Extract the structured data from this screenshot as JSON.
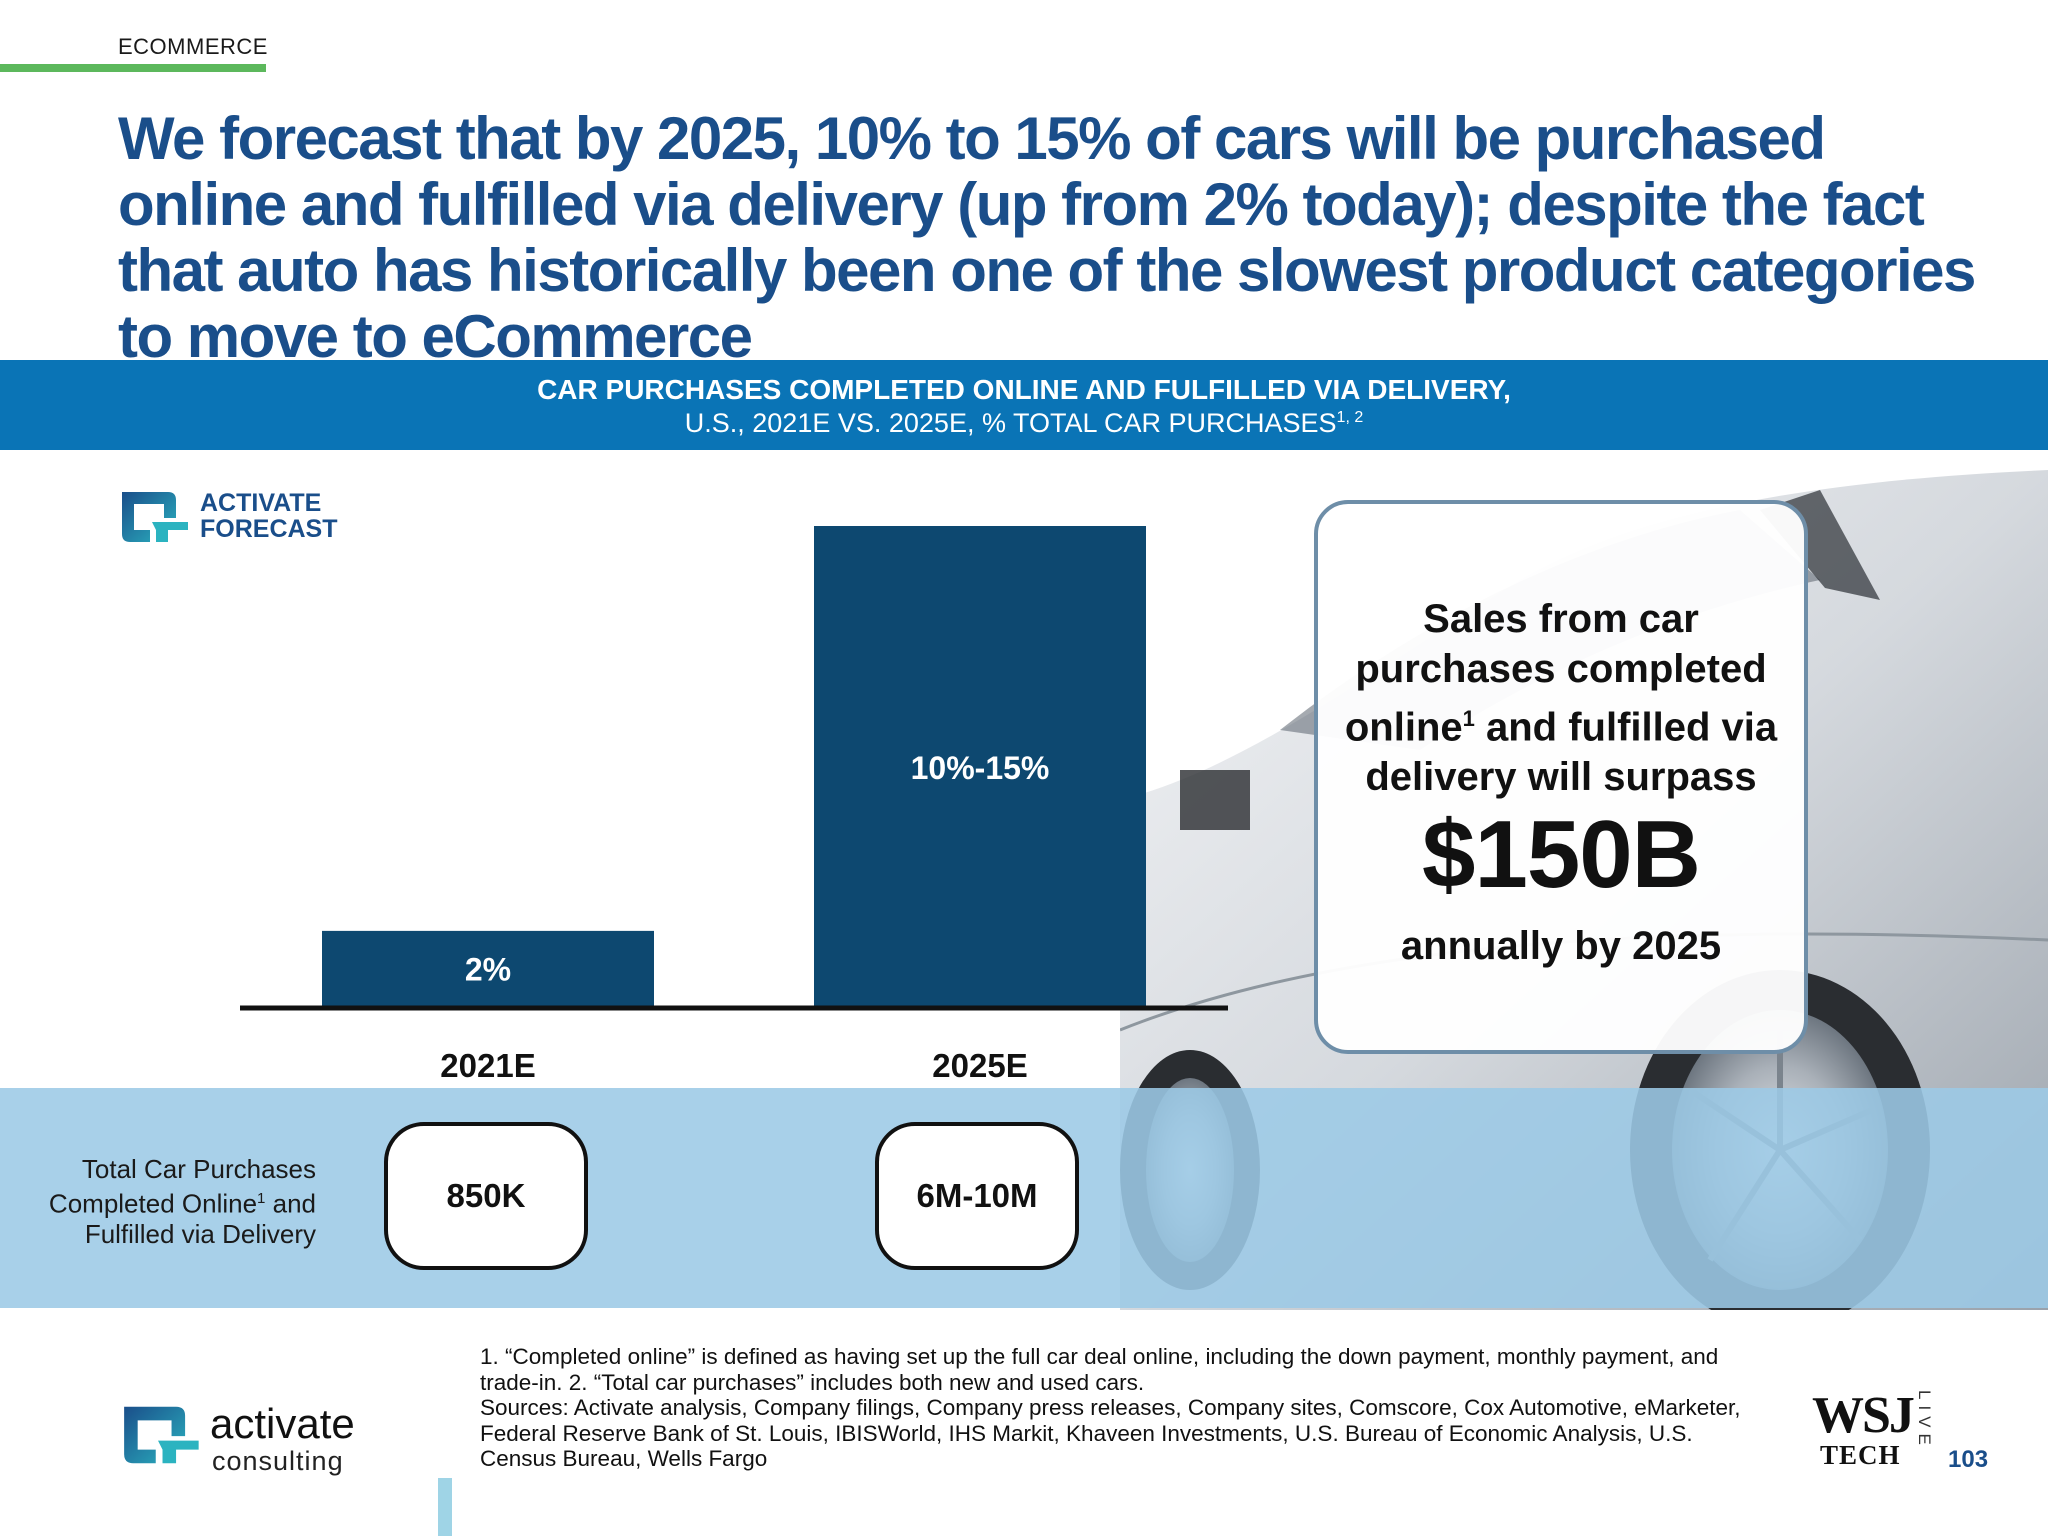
{
  "section_label": "ECOMMERCE",
  "headline": "We forecast that by 2025, 10% to 15% of cars will be purchased online and fulfilled via delivery (up from 2% today); despite the fact that auto has historically been one of the slowest product categories to move to eCommerce",
  "banner": {
    "line1": "CAR PURCHASES COMPLETED ONLINE AND FULFILLED VIA DELIVERY,",
    "line2": "U.S., 2021E VS. 2025E, % TOTAL CAR PURCHASES",
    "line2_sup": "1, 2"
  },
  "forecast_logo": {
    "line1": "ACTIVATE",
    "line2": "FORECAST"
  },
  "chart_data": {
    "type": "bar",
    "categories": [
      "2021E",
      "2025E"
    ],
    "values": [
      2,
      12.5
    ],
    "value_labels": [
      "2%",
      "10%-15%"
    ],
    "range": [
      [
        2,
        2
      ],
      [
        10,
        15
      ]
    ],
    "unit": "% of total car purchases",
    "ylim": [
      0,
      12.5
    ],
    "grid": false,
    "colors": {
      "bar": "#0d4870",
      "axis": "#111111"
    }
  },
  "row_label": {
    "prefix": "Total Car Purchases Completed Online",
    "sup": "1",
    "suffix": " and Fulfilled via Delivery"
  },
  "pills": [
    "850K",
    "6M-10M"
  ],
  "callout": {
    "text_a": "Sales from car purchases completed online",
    "sup": "1",
    "text_b": " and fulfilled via delivery will surpass",
    "big": "$150B",
    "tail": "annually by 2025"
  },
  "footnotes": {
    "line1": "1. “Completed online” is defined as having set up the full car deal online, including the down payment, monthly payment, and trade-in.  2. “Total car purchases” includes both new and used cars.",
    "sources": "Sources: Activate analysis, Company filings, Company press releases, Company sites, Comscore, Cox Automotive, eMarketer, Federal Reserve Bank of St. Louis, IBISWorld, IHS Markit, Khaveen Investments, U.S. Bureau of Economic Analysis, U.S. Census Bureau, Wells Fargo"
  },
  "activate_logo": {
    "word1": "activate",
    "word2": "consulting"
  },
  "wsj": {
    "line1": "WSJ",
    "line2": "TECH",
    "live": "LIVE"
  },
  "page_number": "103",
  "colors": {
    "headline": "#1a4e8a",
    "banner": "#0a74b6",
    "accent_green": "#5cb85c",
    "band": "#9ccae6"
  }
}
